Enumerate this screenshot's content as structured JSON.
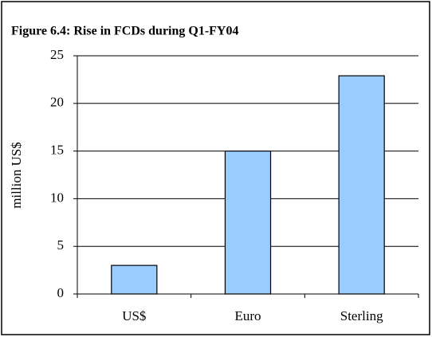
{
  "chart_data": {
    "type": "bar",
    "title": "Figure 6.4: Rise in FCDs during Q1-FY04",
    "y_label": "million US$",
    "categories": [
      "US$",
      "Euro",
      "Sterling"
    ],
    "values": [
      3,
      15,
      22.9
    ],
    "color": "#99ccff",
    "ylim": [
      0,
      25
    ],
    "yticks": [
      0,
      5,
      10,
      15,
      20,
      25
    ],
    "grid": true
  }
}
